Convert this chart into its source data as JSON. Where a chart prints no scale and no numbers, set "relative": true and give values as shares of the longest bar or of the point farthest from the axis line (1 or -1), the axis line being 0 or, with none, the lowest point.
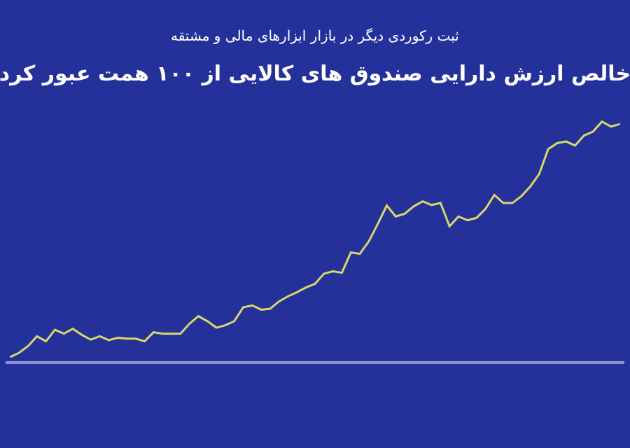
{
  "chart_data": {
    "type": "line",
    "title": "خالص ارزش دارایی صندوق های کالایی از ۱۰۰ همت عبور کرد",
    "subtitle": "ثبت رکوردی دیگر در بازار ابزارهای مالی و مشتقه",
    "relative": true,
    "marker": "none",
    "line_style": "solid",
    "categories": [
      null,
      null,
      null,
      null,
      null,
      null,
      null,
      null,
      null,
      null,
      null,
      null,
      null,
      null,
      null,
      null,
      null,
      null,
      null,
      null,
      null,
      null,
      null,
      null,
      null,
      null,
      null,
      null,
      null,
      null,
      null,
      null,
      null,
      null,
      null,
      null,
      null,
      null,
      null,
      null,
      null,
      null,
      null,
      null,
      null,
      null,
      null,
      null,
      null,
      null,
      null,
      null,
      null,
      null,
      null,
      null,
      null,
      null,
      null,
      null,
      null,
      null,
      null,
      null,
      null,
      null,
      null,
      null,
      null
    ],
    "series": [
      {
        "color": "#d8d86a",
        "values": [
          0.017,
          0.035,
          0.063,
          0.104,
          0.083,
          0.131,
          0.115,
          0.135,
          0.11,
          0.09,
          0.104,
          0.088,
          0.098,
          0.094,
          0.094,
          0.083,
          0.121,
          0.115,
          0.115,
          0.115,
          0.156,
          0.188,
          0.167,
          0.14,
          0.15,
          0.167,
          0.225,
          0.233,
          0.215,
          0.219,
          0.25,
          0.271,
          0.288,
          0.308,
          0.323,
          0.365,
          0.375,
          0.369,
          0.454,
          0.448,
          0.5,
          0.573,
          0.65,
          0.604,
          0.615,
          0.646,
          0.667,
          0.652,
          0.66,
          0.563,
          0.604,
          0.588,
          0.598,
          0.635,
          0.694,
          0.66,
          0.66,
          0.688,
          0.729,
          0.781,
          0.885,
          0.91,
          0.917,
          0.9,
          0.942,
          0.958,
          1.0,
          0.979,
          0.99
        ]
      }
    ]
  }
}
